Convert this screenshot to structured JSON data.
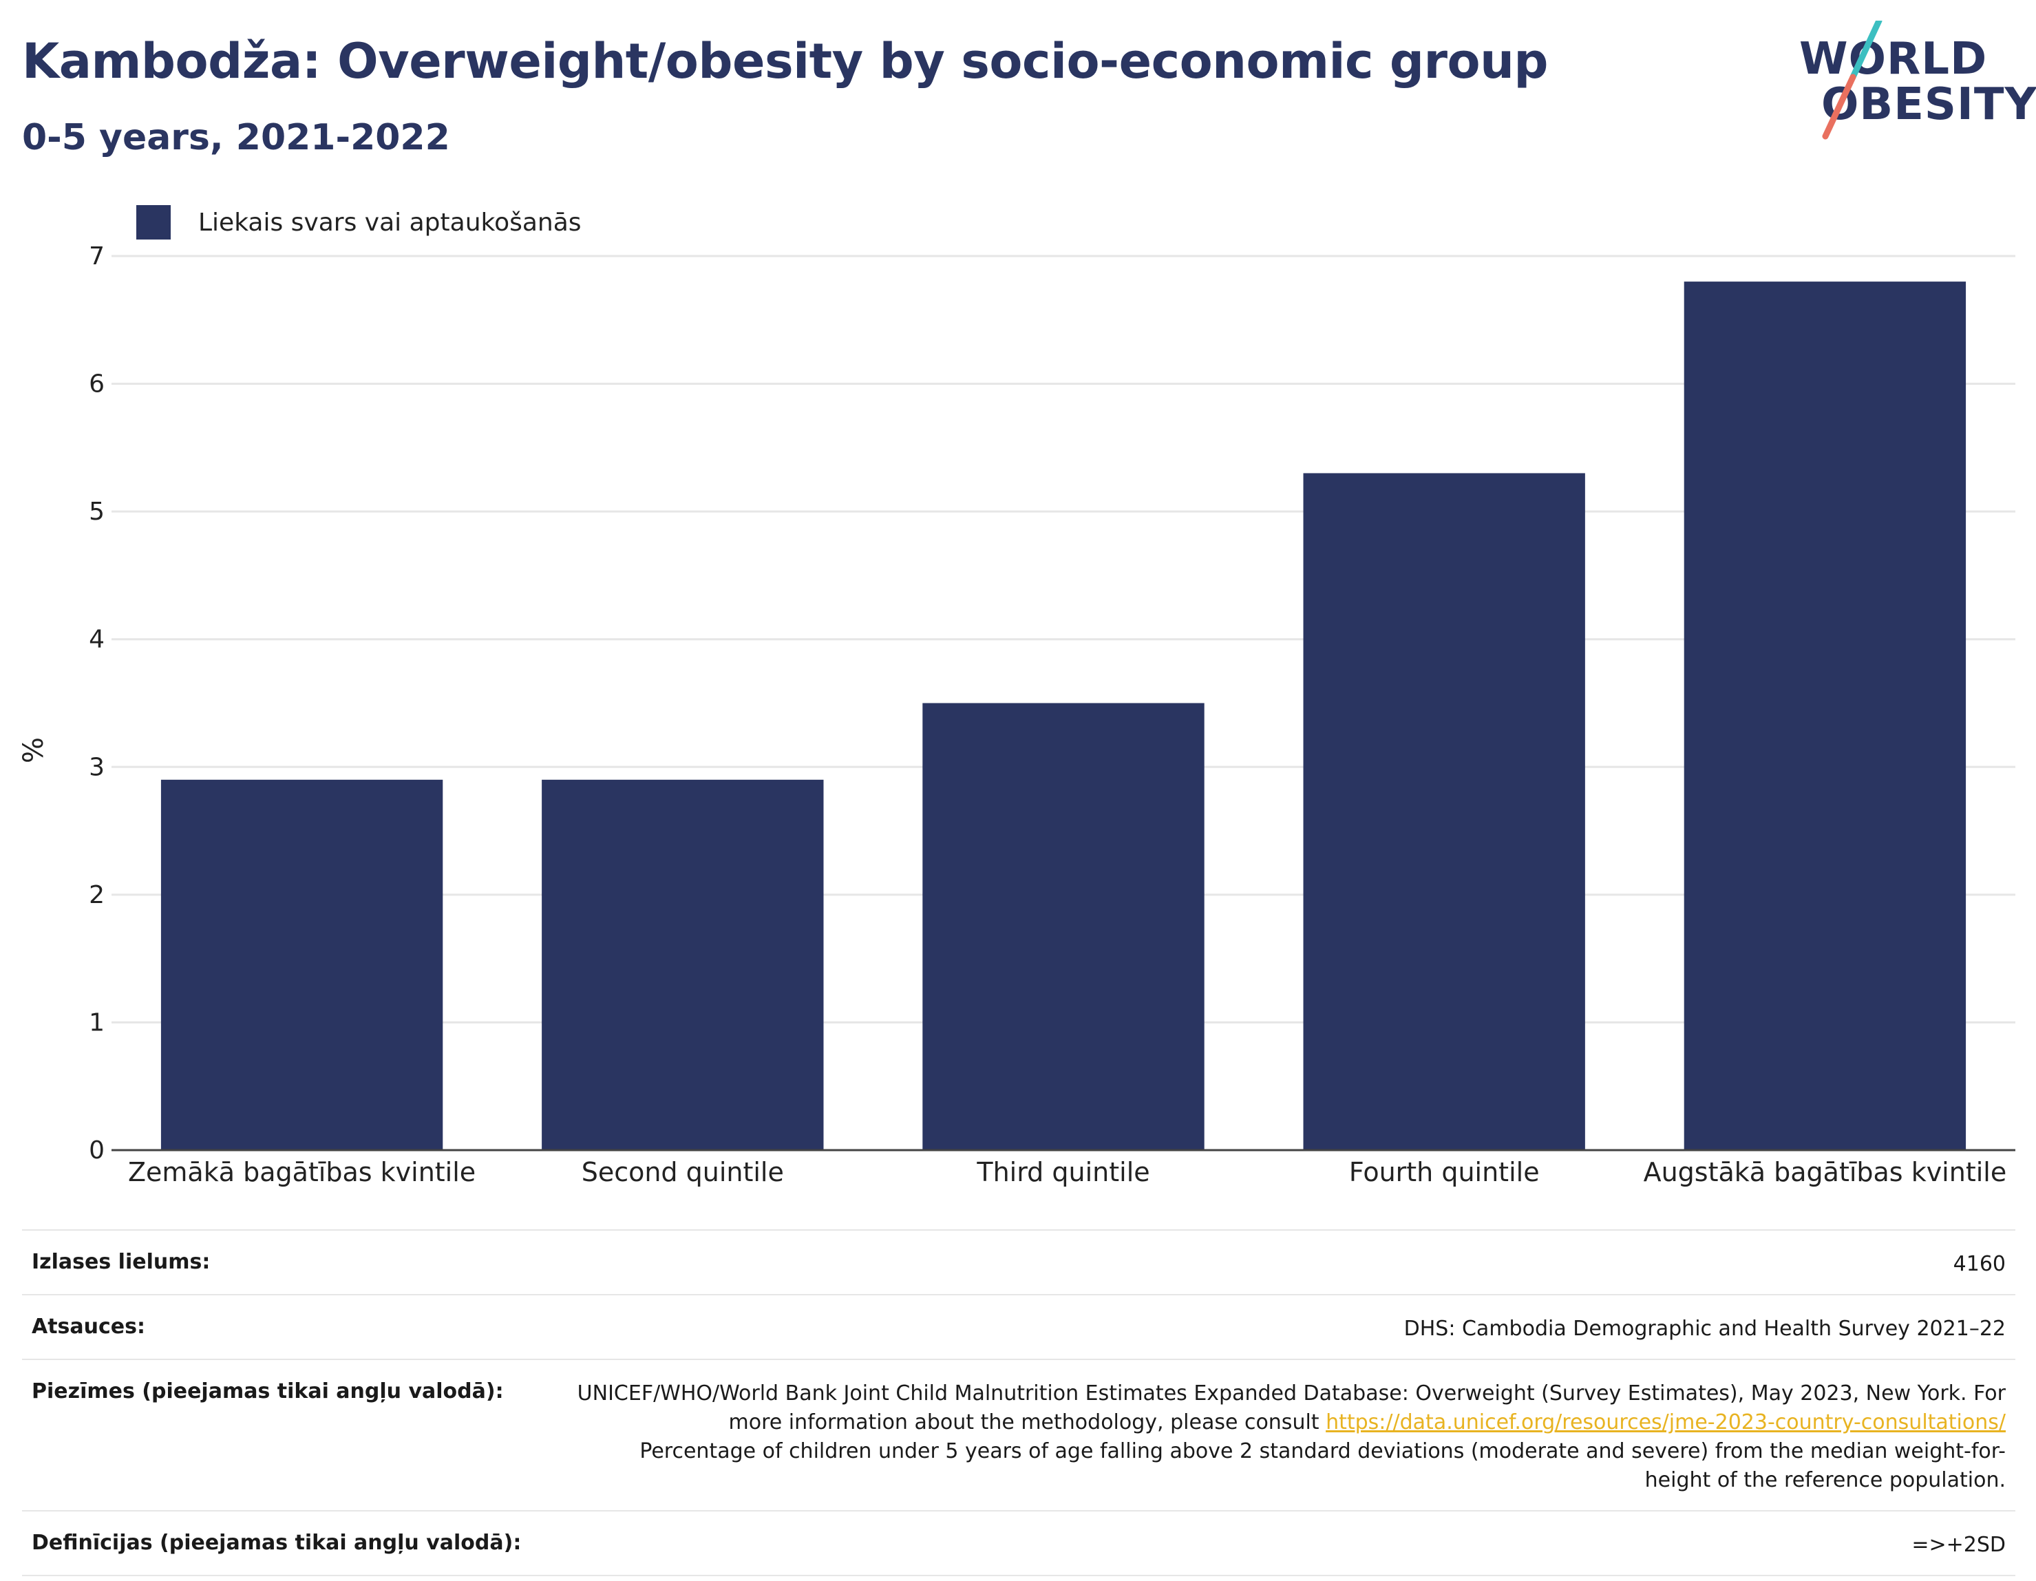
{
  "header": {
    "title": "Kambodža: Overweight/obesity by socio-economic group",
    "subtitle": "0-5 years, 2021-2022"
  },
  "logo": {
    "line1": "WORLD",
    "line2": "OBESITY",
    "colors": {
      "text": "#2a3561",
      "slash_top": "#3cbfc1",
      "slash_bottom": "#e9705f"
    }
  },
  "legend": {
    "items": [
      {
        "label": "Liekais svars vai aptaukošanās",
        "color": "#2a3561"
      }
    ]
  },
  "chart_data": {
    "type": "bar",
    "categories": [
      "Zemākā bagātības kvintile",
      "Second quintile",
      "Third quintile",
      "Fourth quintile",
      "Augstākā bagātības kvintile"
    ],
    "series": [
      {
        "name": "Liekais svars vai aptaukošanās",
        "values": [
          2.9,
          2.9,
          3.5,
          5.3,
          6.8
        ]
      }
    ],
    "ylabel": "%",
    "xlabel": "",
    "ylim": [
      0,
      7
    ],
    "yticks": [
      0,
      1,
      2,
      3,
      4,
      5,
      6,
      7
    ],
    "grid": true,
    "legend_position": "top-left",
    "bar_color": "#2a3561"
  },
  "info": {
    "sample_label": "Izlases lielums:",
    "sample_value": "4160",
    "sources_label": "Atsauces:",
    "sources_value": "DHS: Cambodia Demographic and Health Survey 2021–22",
    "notes_label": "Piezīmes (pieejamas tikai angļu valodā):",
    "notes_text_1": "UNICEF/WHO/World Bank Joint Child Malnutrition Estimates Expanded Database: Overweight (Survey Estimates), May 2023, New York. For more information about the methodology, please consult ",
    "notes_link": "https://data.unicef.org/resources/jme-2023-country-consultations/",
    "notes_text_2": "Percentage of children under 5 years of age falling above 2 standard deviations (moderate and severe) from the median weight-for-height of the reference population.",
    "definitions_label": "Definīcijas (pieejamas tikai angļu valodā):",
    "definitions_value": "=>+2SD"
  }
}
